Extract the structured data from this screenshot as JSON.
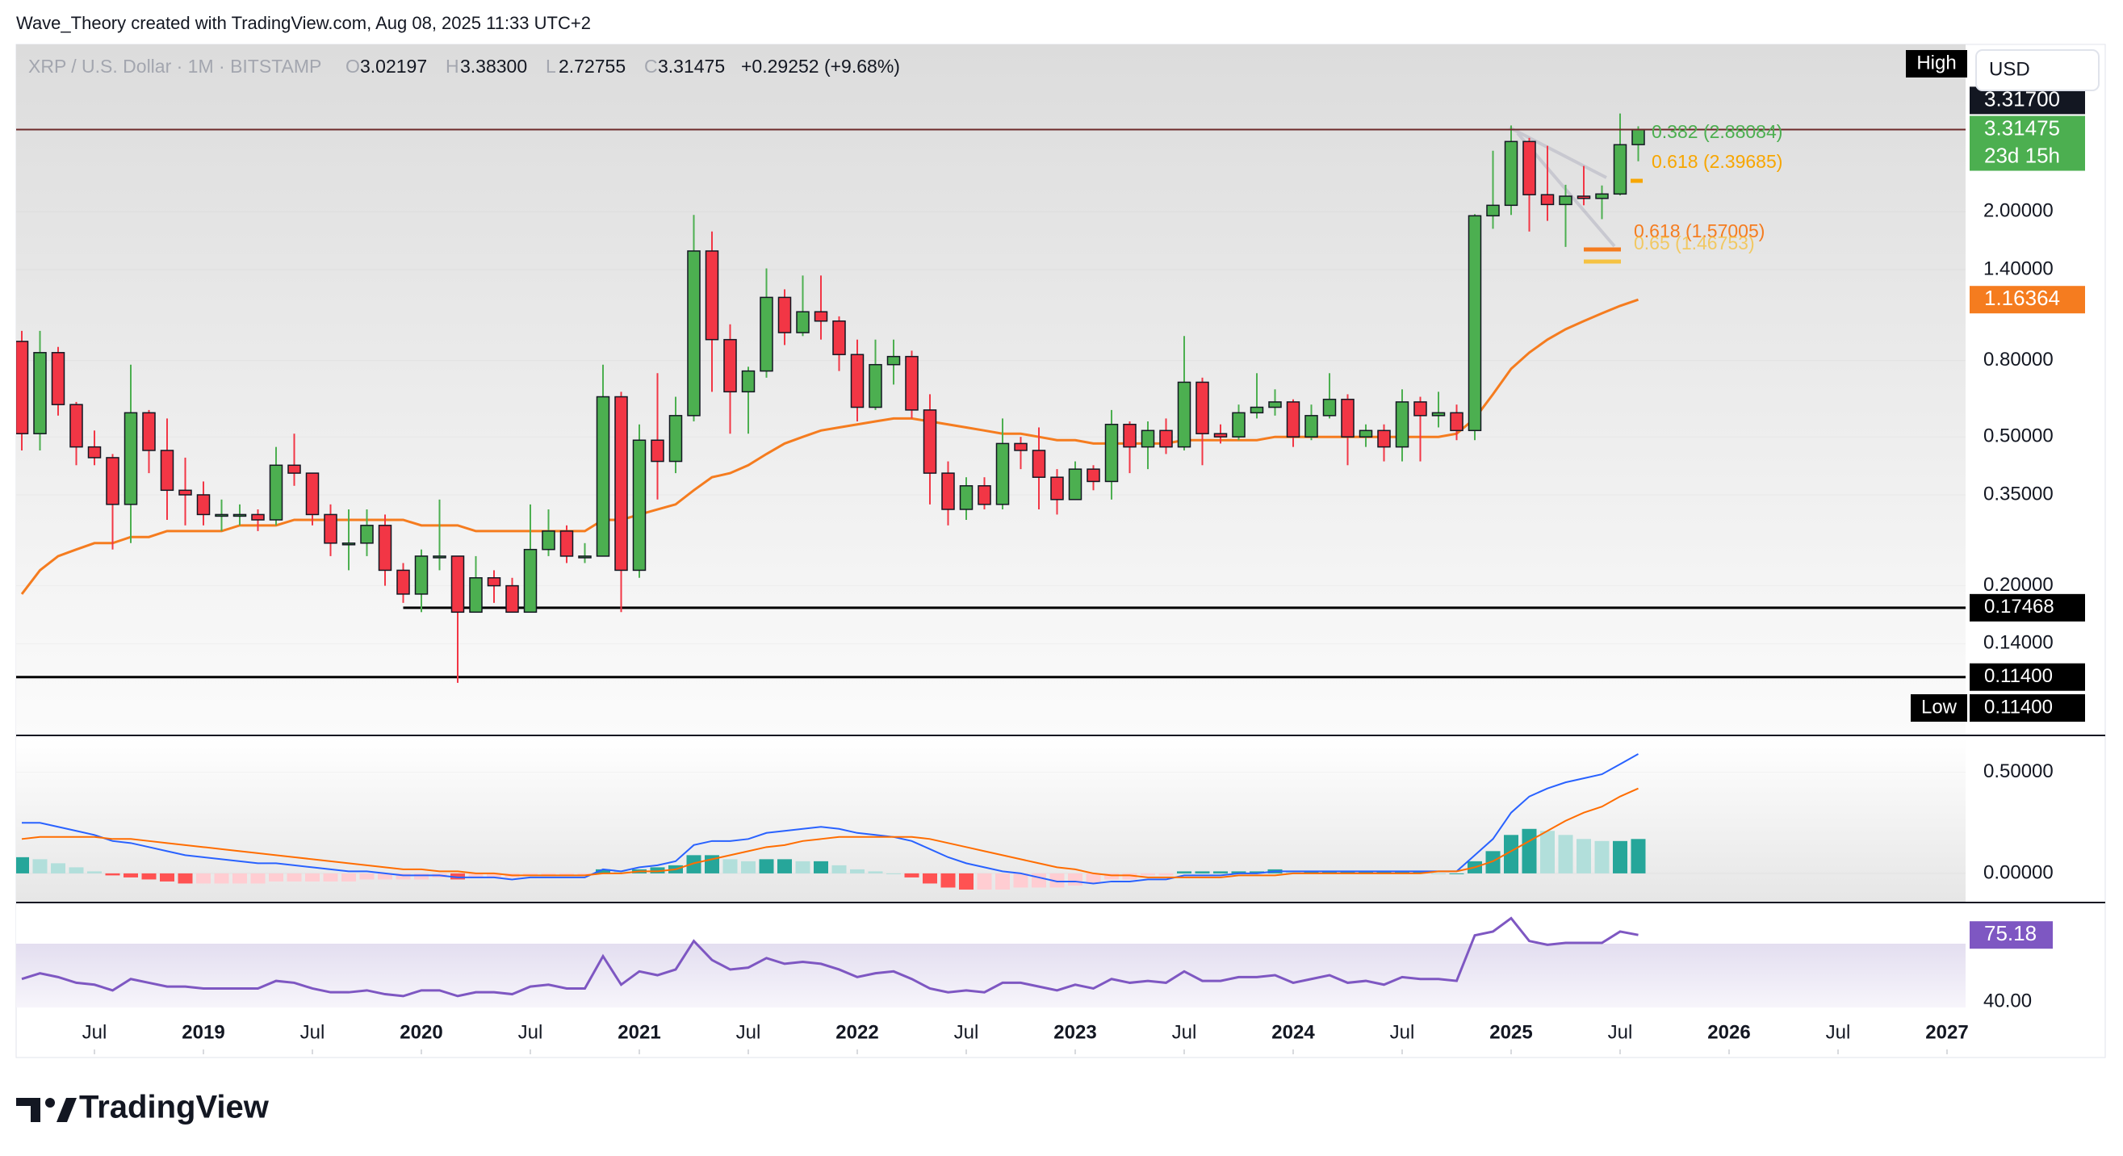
{
  "header": {
    "credit": "Wave_Theory created with TradingView.com, Aug 08, 2025 11:33 UTC+2"
  },
  "legend": {
    "symbol": "XRP / U.S. Dollar · 1M · BITSTAMP",
    "o_label": "O",
    "o": "3.02197",
    "h_label": "H",
    "h": "3.38300",
    "l_label": "L",
    "l": "2.72755",
    "c_label": "C",
    "c": "3.31475",
    "change": "+0.29252 (+9.68%)"
  },
  "toolbar": {
    "high": "High",
    "currency": "USD",
    "low": "Low"
  },
  "footer": {
    "brand": "TradingView"
  },
  "chart_data": {
    "type": "candlestick",
    "x": [
      "2018-03",
      "2018-04",
      "2018-05",
      "2018-06",
      "2018-07",
      "2018-08",
      "2018-09",
      "2018-10",
      "2018-11",
      "2018-12",
      "2019-01",
      "2019-02",
      "2019-03",
      "2019-04",
      "2019-05",
      "2019-06",
      "2019-07",
      "2019-08",
      "2019-09",
      "2019-10",
      "2019-11",
      "2019-12",
      "2020-01",
      "2020-02",
      "2020-03",
      "2020-04",
      "2020-05",
      "2020-06",
      "2020-07",
      "2020-08",
      "2020-09",
      "2020-10",
      "2020-11",
      "2020-12",
      "2021-01",
      "2021-02",
      "2021-03",
      "2021-04",
      "2021-05",
      "2021-06",
      "2021-07",
      "2021-08",
      "2021-09",
      "2021-10",
      "2021-11",
      "2021-12",
      "2022-01",
      "2022-02",
      "2022-03",
      "2022-04",
      "2022-05",
      "2022-06",
      "2022-07",
      "2022-08",
      "2022-09",
      "2022-10",
      "2022-11",
      "2022-12",
      "2023-01",
      "2023-02",
      "2023-03",
      "2023-04",
      "2023-05",
      "2023-06",
      "2023-07",
      "2023-08",
      "2023-09",
      "2023-10",
      "2023-11",
      "2023-12",
      "2024-01",
      "2024-02",
      "2024-03",
      "2024-04",
      "2024-05",
      "2024-06",
      "2024-07",
      "2024-08",
      "2024-09",
      "2024-10",
      "2024-11",
      "2024-12",
      "2025-01",
      "2025-02",
      "2025-03",
      "2025-04",
      "2025-05",
      "2025-06",
      "2025-07",
      "2025-08"
    ],
    "open": [
      0.9,
      0.51,
      0.84,
      0.61,
      0.47,
      0.44,
      0.33,
      0.58,
      0.46,
      0.36,
      0.35,
      0.31,
      0.31,
      0.31,
      0.3,
      0.42,
      0.4,
      0.31,
      0.26,
      0.26,
      0.29,
      0.22,
      0.19,
      0.24,
      0.24,
      0.17,
      0.21,
      0.2,
      0.17,
      0.25,
      0.28,
      0.24,
      0.24,
      0.64,
      0.22,
      0.49,
      0.43,
      0.57,
      1.57,
      0.91,
      0.66,
      0.75,
      1.18,
      0.95,
      1.08,
      1.02,
      0.83,
      0.6,
      0.78,
      0.82,
      0.59,
      0.4,
      0.32,
      0.37,
      0.33,
      0.48,
      0.46,
      0.39,
      0.34,
      0.41,
      0.38,
      0.54,
      0.47,
      0.52,
      0.47,
      0.7,
      0.51,
      0.5,
      0.58,
      0.6,
      0.62,
      0.5,
      0.57,
      0.63,
      0.5,
      0.52,
      0.47,
      0.62,
      0.57,
      0.58,
      0.52,
      1.95,
      2.08,
      3.08,
      2.22,
      2.09,
      2.2,
      2.17,
      2.23,
      3.02197
    ],
    "high": [
      0.96,
      0.96,
      0.87,
      0.62,
      0.52,
      0.45,
      0.78,
      0.59,
      0.56,
      0.44,
      0.38,
      0.34,
      0.33,
      0.32,
      0.47,
      0.51,
      0.4,
      0.33,
      0.32,
      0.32,
      0.31,
      0.23,
      0.25,
      0.34,
      0.24,
      0.24,
      0.22,
      0.21,
      0.33,
      0.32,
      0.29,
      0.26,
      0.78,
      0.66,
      0.54,
      0.74,
      0.64,
      1.96,
      1.77,
      1.0,
      0.77,
      1.41,
      1.24,
      1.35,
      1.35,
      1.05,
      0.91,
      0.91,
      0.91,
      0.85,
      0.65,
      0.43,
      0.39,
      0.39,
      0.56,
      0.5,
      0.53,
      0.41,
      0.43,
      0.42,
      0.59,
      0.55,
      0.55,
      0.56,
      0.93,
      0.72,
      0.54,
      0.61,
      0.74,
      0.67,
      0.63,
      0.61,
      0.74,
      0.65,
      0.54,
      0.54,
      0.67,
      0.64,
      0.66,
      0.61,
      1.97,
      2.91,
      3.4,
      3.15,
      3.0,
      2.36,
      2.65,
      2.35,
      3.66,
      3.383
    ],
    "low": [
      0.46,
      0.46,
      0.57,
      0.42,
      0.42,
      0.25,
      0.26,
      0.4,
      0.3,
      0.29,
      0.29,
      0.28,
      0.29,
      0.28,
      0.29,
      0.37,
      0.29,
      0.24,
      0.22,
      0.24,
      0.2,
      0.18,
      0.17,
      0.22,
      0.11,
      0.17,
      0.18,
      0.17,
      0.17,
      0.24,
      0.23,
      0.23,
      0.24,
      0.17,
      0.21,
      0.34,
      0.4,
      0.55,
      0.66,
      0.51,
      0.51,
      0.72,
      0.88,
      0.93,
      0.91,
      0.75,
      0.55,
      0.59,
      0.69,
      0.56,
      0.33,
      0.29,
      0.3,
      0.32,
      0.32,
      0.41,
      0.32,
      0.31,
      0.34,
      0.36,
      0.34,
      0.4,
      0.41,
      0.45,
      0.46,
      0.42,
      0.48,
      0.49,
      0.56,
      0.57,
      0.47,
      0.49,
      0.56,
      0.42,
      0.47,
      0.43,
      0.43,
      0.43,
      0.53,
      0.49,
      0.49,
      1.8,
      1.96,
      1.77,
      1.89,
      1.61,
      2.08,
      1.91,
      2.21,
      2.72755
    ],
    "close": [
      0.51,
      0.84,
      0.61,
      0.47,
      0.44,
      0.33,
      0.58,
      0.46,
      0.36,
      0.35,
      0.31,
      0.31,
      0.31,
      0.3,
      0.42,
      0.4,
      0.31,
      0.26,
      0.26,
      0.29,
      0.22,
      0.19,
      0.24,
      0.24,
      0.17,
      0.21,
      0.2,
      0.17,
      0.25,
      0.28,
      0.24,
      0.24,
      0.64,
      0.22,
      0.49,
      0.43,
      0.57,
      1.57,
      0.91,
      0.66,
      0.75,
      1.18,
      0.95,
      1.08,
      1.02,
      0.83,
      0.6,
      0.78,
      0.82,
      0.59,
      0.4,
      0.32,
      0.37,
      0.33,
      0.48,
      0.46,
      0.39,
      0.34,
      0.41,
      0.38,
      0.54,
      0.47,
      0.52,
      0.47,
      0.7,
      0.51,
      0.5,
      0.58,
      0.6,
      0.62,
      0.5,
      0.57,
      0.63,
      0.5,
      0.52,
      0.47,
      0.62,
      0.57,
      0.58,
      0.52,
      1.95,
      2.08,
      3.08,
      2.22,
      2.09,
      2.2,
      2.17,
      2.23,
      3.02,
      3.31475
    ],
    "ylim": [
      0.08,
      5.6
    ],
    "log_scale": true,
    "yticks": [
      {
        "value": 2,
        "label": "2.00000"
      },
      {
        "value": 1.4,
        "label": "1.40000"
      },
      {
        "value": 0.8,
        "label": "0.80000"
      },
      {
        "value": 0.5,
        "label": "0.50000"
      },
      {
        "value": 0.35,
        "label": "0.35000"
      },
      {
        "value": 0.2,
        "label": "0.20000"
      },
      {
        "value": 0.14,
        "label": "0.14000"
      }
    ],
    "xticks": [
      {
        "value": "2018-07",
        "label": "Jul"
      },
      {
        "value": "2019-01",
        "label": "2019"
      },
      {
        "value": "2019-07",
        "label": "Jul"
      },
      {
        "value": "2020-01",
        "label": "2020"
      },
      {
        "value": "2020-07",
        "label": "Jul"
      },
      {
        "value": "2021-01",
        "label": "2021"
      },
      {
        "value": "2021-07",
        "label": "Jul"
      },
      {
        "value": "2022-01",
        "label": "2022"
      },
      {
        "value": "2022-07",
        "label": "Jul"
      },
      {
        "value": "2023-01",
        "label": "2023"
      },
      {
        "value": "2023-07",
        "label": "Jul"
      },
      {
        "value": "2024-01",
        "label": "2024"
      },
      {
        "value": "2024-07",
        "label": "Jul"
      },
      {
        "value": "2025-01",
        "label": "2025"
      },
      {
        "value": "2025-07",
        "label": "Jul"
      },
      {
        "value": "2026-01",
        "label": "2026"
      },
      {
        "value": "2026-07",
        "label": "Jul"
      },
      {
        "value": "2027-01",
        "label": "2027"
      }
    ],
    "up_color": "#4caf50",
    "down_color": "#f23645",
    "moving_average": {
      "color": "#f57c1f",
      "values": [
        0.19,
        0.22,
        0.24,
        0.25,
        0.26,
        0.26,
        0.27,
        0.27,
        0.28,
        0.28,
        0.28,
        0.28,
        0.29,
        0.29,
        0.29,
        0.3,
        0.3,
        0.3,
        0.3,
        0.3,
        0.3,
        0.3,
        0.29,
        0.29,
        0.29,
        0.28,
        0.28,
        0.28,
        0.28,
        0.28,
        0.28,
        0.28,
        0.3,
        0.3,
        0.31,
        0.32,
        0.33,
        0.36,
        0.39,
        0.4,
        0.42,
        0.45,
        0.48,
        0.5,
        0.52,
        0.53,
        0.54,
        0.55,
        0.56,
        0.56,
        0.55,
        0.54,
        0.53,
        0.52,
        0.51,
        0.51,
        0.5,
        0.49,
        0.49,
        0.48,
        0.48,
        0.48,
        0.48,
        0.48,
        0.49,
        0.49,
        0.49,
        0.49,
        0.49,
        0.5,
        0.5,
        0.5,
        0.5,
        0.5,
        0.5,
        0.5,
        0.5,
        0.5,
        0.5,
        0.51,
        0.56,
        0.65,
        0.76,
        0.84,
        0.91,
        0.97,
        1.02,
        1.07,
        1.12,
        1.16364
      ]
    },
    "levels": [
      {
        "value": 0.17468,
        "label": "0.17468"
      },
      {
        "value": 0.114,
        "label": "0.11400"
      }
    ],
    "price_markers": [
      {
        "value": 3.317,
        "label": "3.31700",
        "color": "#131722"
      },
      {
        "value": 3.31475,
        "label": "3.31475",
        "color": "#4caf50"
      },
      {
        "value": 1.16364,
        "color": "#f57c1f"
      }
    ],
    "countdown": "23d 15h",
    "low_marker": {
      "value": 0.114,
      "label": "0.11400"
    },
    "annotations": [
      "0.382 (2.88084)",
      "0.618 (2.39685)",
      "0.618 (1.57005)",
      "0.65 (1.46753)"
    ],
    "macd": {
      "ylim": [
        -0.14,
        0.67
      ],
      "yticks": [
        {
          "value": 0.5,
          "label": "0.50000"
        },
        {
          "value": 0,
          "label": "0.00000"
        }
      ],
      "macd_line": {
        "color": "#2962ff",
        "values": [
          0.25,
          0.25,
          0.23,
          0.21,
          0.19,
          0.16,
          0.15,
          0.13,
          0.11,
          0.09,
          0.08,
          0.07,
          0.06,
          0.05,
          0.05,
          0.04,
          0.03,
          0.02,
          0.01,
          0.01,
          0.0,
          -0.01,
          -0.01,
          -0.01,
          -0.02,
          -0.02,
          -0.02,
          -0.03,
          -0.02,
          -0.02,
          -0.02,
          -0.02,
          0.02,
          0.01,
          0.03,
          0.04,
          0.06,
          0.14,
          0.16,
          0.16,
          0.17,
          0.2,
          0.21,
          0.22,
          0.23,
          0.22,
          0.2,
          0.19,
          0.18,
          0.16,
          0.12,
          0.08,
          0.05,
          0.03,
          0.01,
          0.0,
          -0.02,
          -0.04,
          -0.04,
          -0.05,
          -0.04,
          -0.04,
          -0.03,
          -0.03,
          -0.01,
          -0.01,
          -0.01,
          0.0,
          0.0,
          0.01,
          0.01,
          0.01,
          0.01,
          0.01,
          0.01,
          0.01,
          0.01,
          0.01,
          0.01,
          0.01,
          0.09,
          0.17,
          0.3,
          0.38,
          0.42,
          0.45,
          0.47,
          0.49,
          0.54,
          0.59
        ]
      },
      "signal_line": {
        "color": "#ff6d00",
        "values": [
          0.17,
          0.18,
          0.18,
          0.18,
          0.18,
          0.17,
          0.17,
          0.16,
          0.15,
          0.14,
          0.13,
          0.12,
          0.11,
          0.1,
          0.09,
          0.08,
          0.07,
          0.06,
          0.05,
          0.04,
          0.03,
          0.02,
          0.02,
          0.01,
          0.01,
          0.0,
          0.0,
          -0.01,
          -0.01,
          -0.01,
          -0.01,
          -0.01,
          0.0,
          0.0,
          0.01,
          0.01,
          0.02,
          0.05,
          0.07,
          0.09,
          0.11,
          0.13,
          0.14,
          0.16,
          0.17,
          0.18,
          0.18,
          0.18,
          0.18,
          0.18,
          0.17,
          0.15,
          0.13,
          0.11,
          0.09,
          0.07,
          0.05,
          0.03,
          0.02,
          0.0,
          -0.01,
          -0.01,
          -0.02,
          -0.02,
          -0.02,
          -0.02,
          -0.02,
          -0.01,
          -0.01,
          -0.01,
          0.0,
          0.0,
          0.0,
          0.0,
          0.0,
          0.0,
          0.0,
          0.0,
          0.01,
          0.01,
          0.03,
          0.06,
          0.11,
          0.16,
          0.21,
          0.26,
          0.3,
          0.33,
          0.38,
          0.42
        ]
      },
      "histogram": {
        "values": [
          0.08,
          0.07,
          0.05,
          0.03,
          0.01,
          -0.01,
          -0.02,
          -0.03,
          -0.04,
          -0.05,
          -0.05,
          -0.05,
          -0.05,
          -0.05,
          -0.04,
          -0.04,
          -0.04,
          -0.04,
          -0.04,
          -0.03,
          -0.03,
          -0.03,
          -0.03,
          -0.02,
          -0.03,
          -0.02,
          -0.02,
          -0.02,
          -0.01,
          -0.01,
          -0.01,
          -0.01,
          0.02,
          0.01,
          0.02,
          0.03,
          0.04,
          0.09,
          0.09,
          0.07,
          0.06,
          0.07,
          0.07,
          0.06,
          0.06,
          0.04,
          0.02,
          0.01,
          0.0,
          -0.02,
          -0.05,
          -0.07,
          -0.08,
          -0.08,
          -0.08,
          -0.07,
          -0.07,
          -0.07,
          -0.06,
          -0.05,
          -0.03,
          -0.03,
          -0.01,
          -0.01,
          0.01,
          0.01,
          0.01,
          0.01,
          0.01,
          0.02,
          0.01,
          0.01,
          0.01,
          0.01,
          0.01,
          0.01,
          0.01,
          0.01,
          0.0,
          0.0,
          0.06,
          0.11,
          0.19,
          0.22,
          0.21,
          0.19,
          0.17,
          0.16,
          0.16,
          0.17
        ]
      }
    },
    "rsi": {
      "ylim": [
        37,
        91
      ],
      "yticks": [
        {
          "value": 40,
          "label": "40.00"
        }
      ],
      "color": "#7e57c2",
      "values": [
        52,
        55,
        53,
        50,
        49,
        46,
        52,
        50,
        48,
        48,
        47,
        47,
        47,
        47,
        51,
        50,
        47,
        45,
        45,
        46,
        44,
        43,
        46,
        46,
        43,
        45,
        45,
        44,
        48,
        49,
        47,
        47,
        64,
        49,
        56,
        54,
        57,
        72,
        62,
        57,
        58,
        63,
        60,
        61,
        60,
        57,
        53,
        55,
        56,
        52,
        47,
        45,
        46,
        45,
        50,
        50,
        48,
        46,
        49,
        47,
        52,
        50,
        51,
        50,
        56,
        51,
        51,
        53,
        53,
        54,
        50,
        52,
        54,
        50,
        51,
        49,
        53,
        52,
        52,
        51,
        75,
        77,
        84,
        72,
        70,
        71,
        71,
        71,
        77,
        75.18
      ]
    }
  }
}
